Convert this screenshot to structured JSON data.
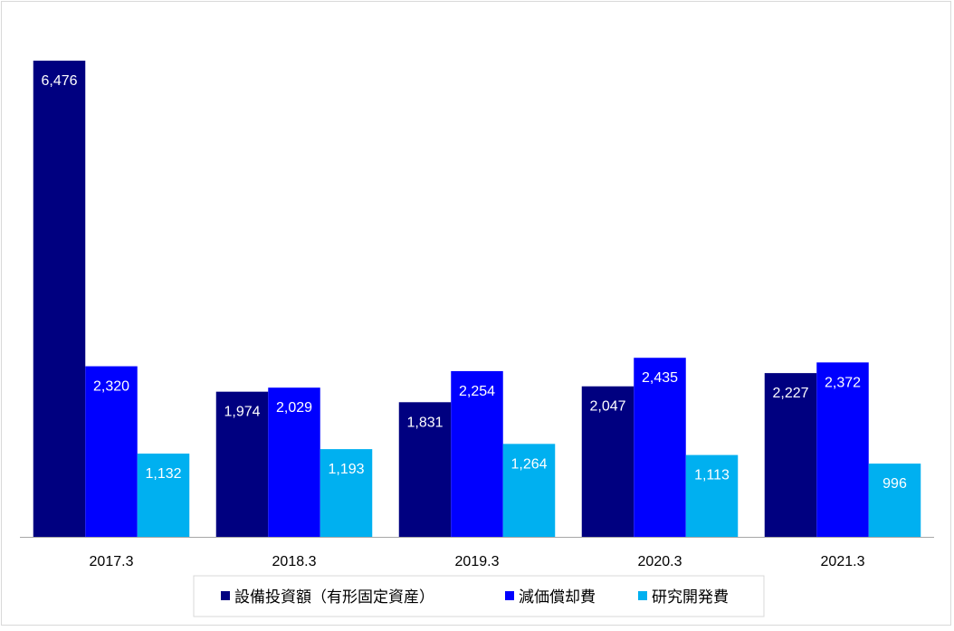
{
  "chart_data": {
    "type": "bar",
    "title": "",
    "xlabel": "",
    "ylabel": "",
    "categories": [
      "2017.3",
      "2018.3",
      "2019.3",
      "2020.3",
      "2021.3"
    ],
    "series": [
      {
        "name": "設備投資額（有形固定資産）",
        "color": "#000080",
        "values": [
          6476,
          1974,
          1831,
          2047,
          2227
        ]
      },
      {
        "name": "減価償却費",
        "color": "#0000ff",
        "values": [
          2320,
          2029,
          2254,
          2435,
          2372
        ]
      },
      {
        "name": "研究開発費",
        "color": "#00b0f0",
        "values": [
          1132,
          1193,
          1264,
          1113,
          996
        ]
      }
    ],
    "ylim": [
      0,
      6476
    ],
    "grid": false,
    "y_axis_visible": false,
    "data_labels": true,
    "data_label_position": "inside-top",
    "legend_position": "bottom"
  }
}
